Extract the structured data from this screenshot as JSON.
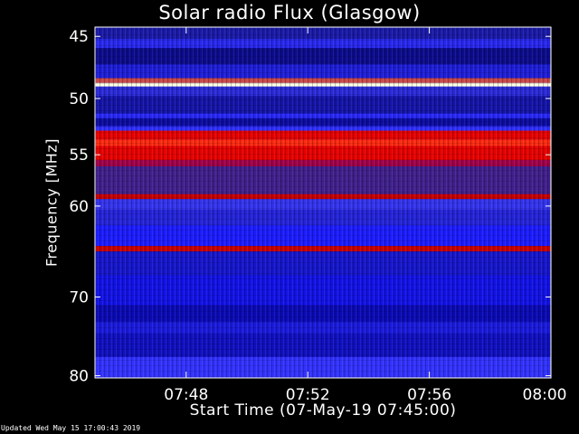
{
  "chart_data": {
    "type": "heatmap",
    "title": "Solar radio Flux (Glasgow)",
    "xlabel": "Start Time (07-May-19 07:45:00)",
    "ylabel": "Frequency [MHz]",
    "x_range": [
      "07:45:00",
      "08:00:00"
    ],
    "x_ticks": [
      "07:48",
      "07:52",
      "07:56",
      "08:00"
    ],
    "y_ticks": [
      45,
      50,
      55,
      60,
      70,
      80
    ],
    "y_range": [
      44.3,
      80.3
    ],
    "y_scale": "log",
    "colors": {
      "background": "#000000",
      "low": "#0000ff",
      "mid": "#ff0000",
      "high": "#ffffff"
    },
    "bands": [
      {
        "from": 44.3,
        "to": 45.2,
        "color": "#1a1aa8"
      },
      {
        "from": 45.2,
        "to": 45.9,
        "color": "#2828ee"
      },
      {
        "from": 45.9,
        "to": 47.2,
        "color": "#0c0c8c"
      },
      {
        "from": 47.2,
        "to": 48.3,
        "color": "#1e1ed8"
      },
      {
        "from": 48.3,
        "to": 48.7,
        "color": "#c84848"
      },
      {
        "from": 48.7,
        "to": 49.0,
        "color": "#ffffe6"
      },
      {
        "from": 49.0,
        "to": 49.8,
        "color": "#2a2ad8"
      },
      {
        "from": 49.8,
        "to": 51.3,
        "color": "#1414a8"
      },
      {
        "from": 51.3,
        "to": 51.7,
        "color": "#2a2aff"
      },
      {
        "from": 51.7,
        "to": 52.4,
        "color": "#0c0ca0"
      },
      {
        "from": 52.4,
        "to": 52.8,
        "color": "#3030ff"
      },
      {
        "from": 52.8,
        "to": 53.6,
        "color": "#e60000"
      },
      {
        "from": 53.6,
        "to": 54.2,
        "color": "#ff2a10"
      },
      {
        "from": 54.2,
        "to": 55.5,
        "color": "#e60000"
      },
      {
        "from": 55.5,
        "to": 56.1,
        "color": "#a0004a"
      },
      {
        "from": 56.1,
        "to": 58.8,
        "color": "#40208c"
      },
      {
        "from": 58.8,
        "to": 59.3,
        "color": "#c80000"
      },
      {
        "from": 59.3,
        "to": 60.4,
        "color": "#3434ee"
      },
      {
        "from": 60.4,
        "to": 62.0,
        "color": "#2424d8"
      },
      {
        "from": 62.0,
        "to": 64.2,
        "color": "#1c1cff"
      },
      {
        "from": 64.2,
        "to": 64.8,
        "color": "#c80000"
      },
      {
        "from": 64.8,
        "to": 67.5,
        "color": "#1616cc"
      },
      {
        "from": 67.5,
        "to": 71.0,
        "color": "#1212e6"
      },
      {
        "from": 71.0,
        "to": 73.0,
        "color": "#0a0ab4"
      },
      {
        "from": 73.0,
        "to": 74.5,
        "color": "#1a1adc"
      },
      {
        "from": 74.5,
        "to": 77.5,
        "color": "#1010c0"
      },
      {
        "from": 77.5,
        "to": 80.3,
        "color": "#3232ff"
      }
    ]
  },
  "footer": {
    "updated": "Updated Wed May 15 17:00:43 2019"
  }
}
